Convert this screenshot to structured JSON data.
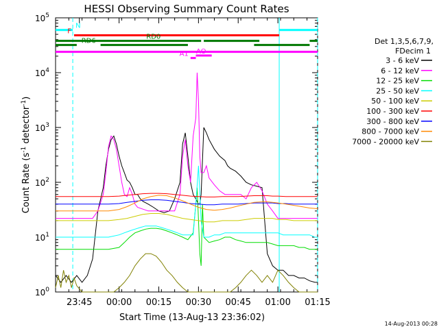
{
  "chart_data": {
    "type": "line",
    "title": "HESSI Observing Summary Count Rates",
    "xlabel": "Start Time (13-Aug-13 23:36:02)",
    "ylabel_main": "Count Rate (s",
    "ylabel_sup": "-1",
    "ylabel_tail": " detector",
    "ylabel_end": ")",
    "timestamp": "14-Aug-2013 00:28",
    "x_unit": "minutes from 2013-08-13 23:36:02",
    "xlim": [
      0,
      99
    ],
    "ylog": true,
    "ylim": [
      1,
      100000
    ],
    "x_ticks": [
      {
        "t": 9,
        "label": "23:45"
      },
      {
        "t": 24,
        "label": "00:00"
      },
      {
        "t": 39,
        "label": "00:15"
      },
      {
        "t": 54,
        "label": "00:30"
      },
      {
        "t": 69,
        "label": "00:45"
      },
      {
        "t": 84,
        "label": "01:00"
      },
      {
        "t": 99,
        "label": "01:15"
      }
    ],
    "y_ticks": [
      {
        "v": 1,
        "base": "10",
        "exp": "0"
      },
      {
        "v": 10,
        "base": "10",
        "exp": "1"
      },
      {
        "v": 100,
        "base": "10",
        "exp": "2"
      },
      {
        "v": 1000,
        "base": "10",
        "exp": "3"
      },
      {
        "v": 10000,
        "base": "10",
        "exp": "4"
      },
      {
        "v": 100000,
        "base": "10",
        "exp": "5"
      }
    ],
    "legend": {
      "position": "right",
      "header1": "Det 1,3,5,6,7,9,",
      "header2": "FDecim 1"
    },
    "series": [
      {
        "name": "3 - 6 keV",
        "color": "#000000",
        "x": [
          0,
          2,
          4,
          6,
          8,
          10,
          12,
          14,
          16,
          18,
          19,
          20,
          21,
          22,
          23,
          24,
          25,
          26,
          27,
          28,
          29,
          30,
          31,
          32,
          33,
          35,
          37,
          39,
          41,
          43,
          45,
          47,
          48,
          49,
          50,
          51,
          52,
          53,
          54,
          54.5,
          55,
          56,
          57,
          58,
          60,
          62,
          64,
          65,
          66,
          68,
          70,
          72,
          74,
          76,
          78,
          80,
          82,
          84,
          86,
          88,
          90,
          92,
          94,
          96,
          98,
          99
        ],
        "y": [
          2,
          1.5,
          2,
          1.5,
          2,
          1.5,
          2,
          4,
          30,
          80,
          200,
          400,
          600,
          700,
          500,
          300,
          200,
          150,
          110,
          100,
          80,
          60,
          60,
          50,
          45,
          40,
          35,
          30,
          28,
          30,
          50,
          100,
          500,
          800,
          300,
          100,
          60,
          50,
          40,
          40,
          60,
          1000,
          800,
          600,
          400,
          300,
          250,
          200,
          180,
          160,
          130,
          100,
          90,
          85,
          80,
          5,
          3,
          2.5,
          2.5,
          2,
          2,
          1.8,
          1.8,
          1.6,
          1.5,
          1.5
        ]
      },
      {
        "name": "6 - 12 keV",
        "color": "#ff00ff",
        "x": [
          0,
          5,
          10,
          14,
          16,
          18,
          19,
          20,
          21,
          22,
          23,
          24,
          25,
          26,
          27,
          28,
          29,
          30,
          31,
          35,
          40,
          45,
          47,
          48,
          49,
          50,
          51,
          52,
          53,
          53.5,
          54,
          54.5,
          55,
          56,
          57,
          58,
          60,
          62,
          64,
          66,
          68,
          70,
          72,
          74,
          76,
          78,
          80,
          82,
          84,
          90,
          95,
          99
        ],
        "y": [
          22,
          22,
          22,
          22,
          30,
          60,
          150,
          450,
          700,
          600,
          400,
          200,
          100,
          60,
          55,
          80,
          60,
          40,
          35,
          30,
          30,
          30,
          60,
          300,
          600,
          200,
          100,
          700,
          1500,
          10000,
          3000,
          300,
          150,
          150,
          200,
          120,
          90,
          70,
          60,
          60,
          60,
          60,
          50,
          80,
          100,
          70,
          40,
          30,
          22,
          22,
          22,
          22
        ]
      },
      {
        "name": "12 - 25 keV",
        "color": "#00dd00",
        "x": [
          0,
          5,
          10,
          15,
          20,
          24,
          26,
          28,
          30,
          32,
          34,
          36,
          38,
          40,
          42,
          44,
          46,
          48,
          50,
          52,
          53,
          53.5,
          54,
          54.5,
          55,
          55.5,
          56,
          58,
          60,
          62,
          64,
          66,
          68,
          70,
          72,
          74,
          76,
          78,
          80,
          82,
          84,
          86,
          88,
          90,
          92,
          94,
          96,
          98,
          99
        ],
        "y": [
          6,
          6,
          6,
          6,
          6,
          6.5,
          8,
          10,
          12,
          13,
          14,
          14.5,
          14.5,
          14,
          13,
          12,
          11,
          10,
          9,
          12,
          40,
          80,
          20,
          5,
          3,
          40,
          10,
          8,
          8.5,
          9,
          10,
          10,
          9,
          8.5,
          8,
          8,
          8,
          8,
          8,
          7.5,
          7,
          7,
          7,
          7,
          6.5,
          6.5,
          6,
          6,
          6
        ]
      },
      {
        "name": "25 - 50 keV",
        "color": "#00ffff",
        "x": [
          0,
          5,
          10,
          15,
          20,
          24,
          26,
          28,
          30,
          32,
          34,
          36,
          38,
          40,
          42,
          44,
          46,
          48,
          50,
          52,
          53,
          54,
          55,
          56,
          58,
          60,
          62,
          64,
          66,
          68,
          70,
          72,
          74,
          76,
          78,
          80,
          82,
          84,
          86,
          88,
          90,
          92,
          94,
          96,
          98,
          99
        ],
        "y": [
          10,
          10,
          10,
          10,
          10,
          11,
          12,
          13,
          14,
          15,
          16,
          16,
          16,
          15,
          14,
          13,
          12,
          11,
          11,
          11,
          40,
          200,
          20,
          10,
          10,
          11,
          11,
          12,
          12,
          12,
          12,
          12,
          12,
          12,
          12,
          12,
          12,
          12,
          11,
          11,
          11,
          11,
          11,
          11,
          10,
          10
        ]
      },
      {
        "name": "50 - 100 keV",
        "color": "#cccc00",
        "x": [
          0,
          5,
          10,
          15,
          20,
          24,
          27,
          30,
          33,
          36,
          39,
          42,
          45,
          48,
          51,
          54,
          57,
          60,
          63,
          66,
          69,
          72,
          75,
          78,
          80,
          82,
          84,
          87,
          90,
          93,
          96,
          99
        ],
        "y": [
          20,
          20,
          20,
          20,
          20,
          21,
          22,
          24,
          26,
          27,
          27,
          26,
          24,
          22,
          21,
          20,
          19,
          19,
          20,
          20,
          20,
          21,
          22,
          22,
          22,
          22,
          21,
          21,
          20,
          20,
          20,
          20
        ]
      },
      {
        "name": "100 - 300 keV",
        "color": "#ff0000",
        "x": [
          0,
          5,
          10,
          15,
          20,
          24,
          27,
          30,
          33,
          36,
          39,
          42,
          45,
          48,
          51,
          54,
          57,
          60,
          63,
          66,
          69,
          72,
          75,
          78,
          80,
          82,
          84,
          87,
          90,
          93,
          96,
          99
        ],
        "y": [
          55,
          55,
          55,
          55,
          55,
          56,
          58,
          60,
          62,
          63,
          63,
          62,
          60,
          58,
          56,
          55,
          54,
          54,
          55,
          55,
          55,
          56,
          57,
          57,
          57,
          56,
          56,
          55,
          55,
          55,
          55,
          55
        ]
      },
      {
        "name": "300 - 800 keV",
        "color": "#0000ff",
        "x": [
          0,
          5,
          10,
          15,
          20,
          24,
          27,
          30,
          33,
          36,
          39,
          42,
          45,
          48,
          51,
          54,
          57,
          60,
          63,
          66,
          69,
          72,
          75,
          78,
          80,
          82,
          84,
          87,
          90,
          93,
          96,
          99
        ],
        "y": [
          40,
          40,
          40,
          40,
          40,
          41,
          43,
          45,
          47,
          48,
          48,
          47,
          45,
          43,
          41,
          40,
          39,
          39,
          40,
          40,
          40,
          41,
          42,
          42,
          42,
          42,
          41,
          41,
          40,
          40,
          40,
          40
        ]
      },
      {
        "name": "800 - 7000 keV",
        "color": "#ff8800",
        "x": [
          0,
          5,
          10,
          15,
          20,
          24,
          27,
          30,
          33,
          36,
          39,
          42,
          45,
          48,
          51,
          54,
          57,
          60,
          63,
          66,
          69,
          72,
          75,
          78,
          80,
          82,
          84,
          87,
          90,
          93,
          96,
          99
        ],
        "y": [
          30,
          30,
          30,
          30,
          30,
          32,
          36,
          42,
          50,
          55,
          58,
          57,
          52,
          46,
          40,
          35,
          32,
          31,
          32,
          34,
          37,
          40,
          43,
          44,
          44,
          43,
          42,
          40,
          38,
          36,
          34,
          33
        ]
      },
      {
        "name": "7000 - 20000 keV",
        "color": "#808000",
        "x": [
          0,
          1,
          2,
          3,
          4,
          5,
          6,
          7,
          8,
          10,
          12,
          14,
          16,
          18,
          20,
          22,
          24,
          26,
          28,
          30,
          32,
          34,
          36,
          38,
          40,
          42,
          44,
          46,
          48,
          50,
          52,
          54,
          56,
          58,
          60,
          62,
          64,
          66,
          68,
          70,
          72,
          74,
          76,
          78,
          80,
          82,
          84,
          86,
          88,
          90,
          92,
          94,
          96,
          98,
          99
        ],
        "y": [
          1.2,
          2,
          1.2,
          2.5,
          1.5,
          2,
          1.2,
          1.8,
          1.3,
          1,
          1,
          1,
          1,
          1,
          1,
          1,
          1.2,
          1.5,
          2,
          3,
          4,
          5,
          5,
          4.5,
          3.5,
          2.5,
          2,
          1.5,
          1.2,
          1,
          1,
          1,
          1,
          1,
          1,
          1,
          1,
          1,
          1.2,
          1.5,
          2,
          2.5,
          2,
          1.5,
          2,
          1.5,
          2.5,
          2,
          1.5,
          1.2,
          1,
          1,
          1,
          1,
          1
        ]
      }
    ],
    "state_bars": [
      {
        "label": "N",
        "color": "#00ffff",
        "value": 60000,
        "segments": [
          [
            0,
            6.5
          ],
          [
            84.5,
            99
          ]
        ]
      },
      {
        "label": "F",
        "color": "#ff0000",
        "value": 48000,
        "segments": [
          [
            7,
            84.5
          ]
        ]
      },
      {
        "label": "RD0",
        "color": "#007700",
        "value": 38000,
        "segments": [
          [
            0,
            55
          ],
          [
            56,
            77
          ],
          [
            96,
            99
          ]
        ]
      },
      {
        "label": "RD6",
        "color": "#007700",
        "value": 32000,
        "segments": [
          [
            0,
            8
          ],
          [
            17,
            50
          ],
          [
            75,
            96
          ]
        ]
      },
      {
        "label": "",
        "color": "#ff00ff",
        "value": 24000,
        "segments": [
          [
            0,
            99
          ]
        ]
      },
      {
        "label": "AO",
        "color": "#ff00ff",
        "value": 20500,
        "segments": [
          [
            53,
            59
          ]
        ]
      },
      {
        "label": "A1",
        "color": "#ff00ff",
        "value": 18500,
        "segments": [
          [
            51,
            53
          ]
        ]
      }
    ],
    "vlines": [
      {
        "t": 6.5,
        "color": "#00ffff",
        "style": "dashed"
      },
      {
        "t": 84.5,
        "color": "#00ffff",
        "style": "solid"
      },
      {
        "t": 99,
        "color": "#00ffff",
        "style": "dashed"
      }
    ]
  }
}
